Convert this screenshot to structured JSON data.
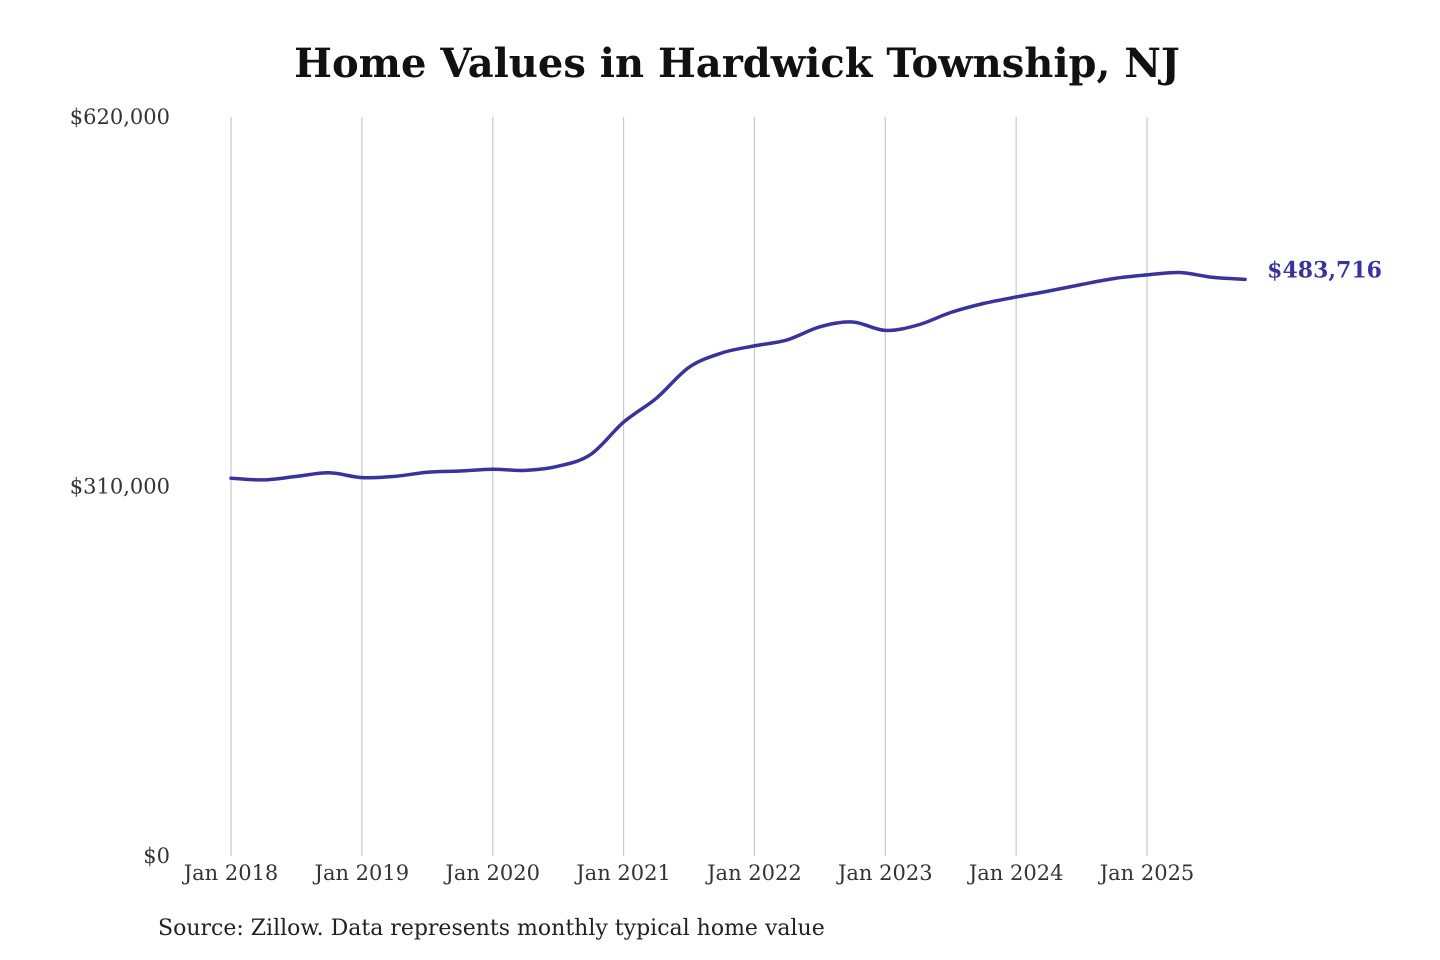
{
  "chart_data": {
    "type": "line",
    "title": "Home Values in Hardwick Township, NJ",
    "xlabel": "",
    "ylabel": "",
    "ylim": [
      0,
      620000
    ],
    "y_ticks": [
      {
        "value": 0,
        "label": "$0"
      },
      {
        "value": 310000,
        "label": "$310,000"
      },
      {
        "value": 620000,
        "label": "$620,000"
      }
    ],
    "x_ticks": [
      {
        "value": 2018.0,
        "label": "Jan 2018"
      },
      {
        "value": 2019.0,
        "label": "Jan 2019"
      },
      {
        "value": 2020.0,
        "label": "Jan 2020"
      },
      {
        "value": 2021.0,
        "label": "Jan 2021"
      },
      {
        "value": 2022.0,
        "label": "Jan 2022"
      },
      {
        "value": 2023.0,
        "label": "Jan 2023"
      },
      {
        "value": 2024.0,
        "label": "Jan 2024"
      },
      {
        "value": 2025.0,
        "label": "Jan 2025"
      }
    ],
    "grid": {
      "vertical": true,
      "horizontal": false
    },
    "series": [
      {
        "color": "#3a339c",
        "end_label": "$483,716",
        "points": [
          [
            2018.0,
            317000
          ],
          [
            2018.25,
            315500
          ],
          [
            2018.5,
            318500
          ],
          [
            2018.75,
            321500
          ],
          [
            2019.0,
            317500
          ],
          [
            2019.25,
            318500
          ],
          [
            2019.5,
            322000
          ],
          [
            2019.75,
            323000
          ],
          [
            2020.0,
            324500
          ],
          [
            2020.25,
            323500
          ],
          [
            2020.5,
            327000
          ],
          [
            2020.75,
            337000
          ],
          [
            2021.0,
            364000
          ],
          [
            2021.25,
            384000
          ],
          [
            2021.5,
            410000
          ],
          [
            2021.75,
            422000
          ],
          [
            2022.0,
            428000
          ],
          [
            2022.25,
            433000
          ],
          [
            2022.5,
            444000
          ],
          [
            2022.75,
            448000
          ],
          [
            2023.0,
            441000
          ],
          [
            2023.25,
            445500
          ],
          [
            2023.5,
            456000
          ],
          [
            2023.75,
            463500
          ],
          [
            2024.0,
            469000
          ],
          [
            2024.25,
            474000
          ],
          [
            2024.5,
            479500
          ],
          [
            2024.75,
            484500
          ],
          [
            2025.0,
            487500
          ],
          [
            2025.25,
            489500
          ],
          [
            2025.5,
            485500
          ],
          [
            2025.75,
            483716
          ]
        ]
      }
    ],
    "source": "Source: Zillow. Data represents monthly typical home value"
  }
}
